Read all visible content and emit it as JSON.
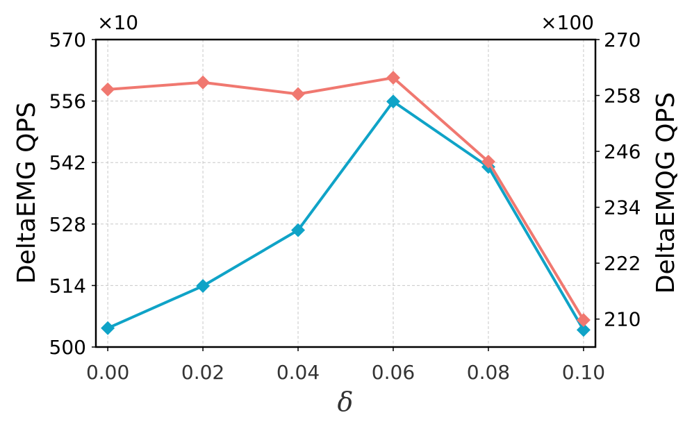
{
  "chart_data": {
    "type": "line",
    "x": [
      0.0,
      0.02,
      0.04,
      0.06,
      0.08,
      0.1
    ],
    "x_tick_labels": [
      "0.00",
      "0.02",
      "0.04",
      "0.06",
      "0.08",
      "0.10"
    ],
    "xlabel": "δ",
    "xlim": [
      -0.0025,
      0.1025
    ],
    "grid": true,
    "left_axis": {
      "label": "DeltaEMG QPS",
      "multiplier": "×10",
      "ylim": [
        500,
        570
      ],
      "ticks": [
        500,
        514,
        528,
        542,
        556,
        570
      ]
    },
    "right_axis": {
      "label": "DeltaEMQG QPS",
      "multiplier": "×100",
      "ylim": [
        204,
        270
      ],
      "ticks": [
        210,
        222,
        234,
        246,
        258,
        270
      ]
    },
    "series": [
      {
        "axis": "left",
        "color": "#0fa3c7",
        "marker": "diamond",
        "values": [
          504.3,
          513.9,
          526.6,
          555.9,
          541.0,
          503.9
        ]
      },
      {
        "axis": "right",
        "color": "#f07870",
        "marker": "diamond",
        "values": [
          259.3,
          260.8,
          258.3,
          261.8,
          243.8,
          209.8
        ]
      }
    ]
  }
}
